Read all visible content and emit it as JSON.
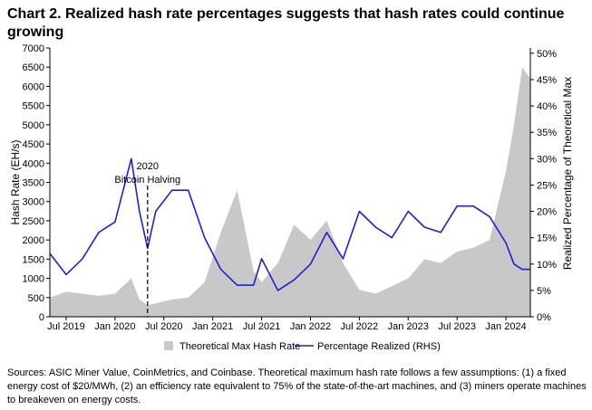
{
  "title": "Chart 2. Realized hash rate percentages suggests that hash rates could continue growing",
  "footnote": "Sources: ASIC Miner Value, CoinMetrics, and Coinbase. Theoretical maximum hash rate follows a few assumptions: (1) a fixed energy cost of $20/MWh, (2) an efficiency rate equivalent to 75% of the state-of-the-art machines, and (3) miners operate machines to breakeven on energy costs.",
  "colors": {
    "area": "#c8c8c8",
    "line": "#1f1fd6",
    "axis": "#000000",
    "annotation": "#000000"
  },
  "chart_data": {
    "type": "area",
    "xlabel": "",
    "ylabel": "Hash Rate (EH/s)",
    "y2label": "Realized Percentage of Theoretical Max",
    "ylim": [
      0,
      7000
    ],
    "y2lim": [
      0,
      0.51
    ],
    "grid": false,
    "legend_position": "bottom",
    "x_ticks": [
      "Jul 2019",
      "Jan 2020",
      "Jul 2020",
      "Jan 2021",
      "Jul 2021",
      "Jan 2022",
      "Jul 2022",
      "Jan 2023",
      "Jul 2023",
      "Jan 2024"
    ],
    "y_ticks": [
      "0",
      "500",
      "1000",
      "1500",
      "2000",
      "2500",
      "3000",
      "3500",
      "4000",
      "4500",
      "5000",
      "5500",
      "6000",
      "6500",
      "7000"
    ],
    "y2_ticks": [
      "0%",
      "5%",
      "10%",
      "15%",
      "20%",
      "25%",
      "30%",
      "35%",
      "40%",
      "45%",
      "50%"
    ],
    "annotation": {
      "label_line1": "2020",
      "label_line2": "Bitcoin Halving",
      "x": "2020-05"
    },
    "x": [
      "2019-05",
      "2019-07",
      "2019-09",
      "2019-11",
      "2020-01",
      "2020-03",
      "2020-04",
      "2020-05",
      "2020-06",
      "2020-08",
      "2020-10",
      "2020-12",
      "2021-02",
      "2021-04",
      "2021-06",
      "2021-07",
      "2021-09",
      "2021-11",
      "2022-01",
      "2022-03",
      "2022-05",
      "2022-07",
      "2022-09",
      "2022-11",
      "2023-01",
      "2023-03",
      "2023-05",
      "2023-07",
      "2023-09",
      "2023-11",
      "2024-01",
      "2024-02",
      "2024-03",
      "2024-04"
    ],
    "series": [
      {
        "name": "Theoretical Max Hash Rate",
        "axis": "left",
        "kind": "area",
        "values": [
          500,
          650,
          600,
          550,
          600,
          1000,
          450,
          300,
          350,
          450,
          500,
          900,
          2200,
          3300,
          1200,
          900,
          1400,
          2400,
          2000,
          2500,
          1400,
          700,
          600,
          800,
          1000,
          1500,
          1400,
          1700,
          1800,
          2000,
          3800,
          5000,
          6500,
          6200
        ]
      },
      {
        "name": "Percentage Realized (RHS)",
        "axis": "right",
        "kind": "line",
        "values": [
          0.12,
          0.08,
          0.11,
          0.16,
          0.18,
          0.3,
          0.2,
          0.13,
          0.2,
          0.24,
          0.24,
          0.15,
          0.09,
          0.06,
          0.06,
          0.11,
          0.05,
          0.07,
          0.1,
          0.16,
          0.11,
          0.2,
          0.17,
          0.15,
          0.2,
          0.17,
          0.16,
          0.21,
          0.21,
          0.19,
          0.14,
          0.1,
          0.09,
          0.09
        ]
      }
    ]
  }
}
